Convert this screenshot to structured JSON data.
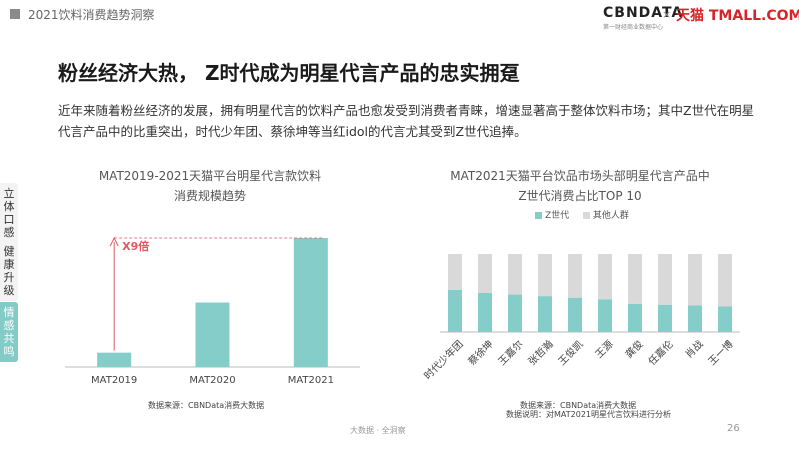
{
  "header": {
    "section_title": "2021饮料消费趋势洞察",
    "brand_left": "CBNDATA",
    "brand_left_sub": "第一财经商业数据中心",
    "brand_sep": "×",
    "brand_right": "天猫 TMALL.COM"
  },
  "headline": "粉丝经济大热， Z时代成为明星代言产品的忠实拥趸",
  "description": "近年来随着粉丝经济的发展，拥有明星代言的饮料产品也愈发受到消费者青睐，增速显著高于整体饮料市场；其中Z世代在明星代言产品中的比重突出，时代少年团、蔡徐坤等当红idol的代言尤其受到Z世代追捧。",
  "side_tabs": [
    {
      "label": "立体口感"
    },
    {
      "label": "健康升级"
    },
    {
      "label": "情感共鸣"
    }
  ],
  "colors": {
    "teal": "#84cdc8",
    "gray": "#d9d9d9",
    "accent_red": "#e0585f",
    "side_active": "#83cbc6"
  },
  "chart_data": [
    {
      "type": "bar",
      "title": "MAT2019-2021天猫平台明星代言款饮料消费规模趋势",
      "title_line1": "MAT2019-2021天猫平台明星代言款饮料",
      "title_line2": "消费规模趋势",
      "categories": [
        "MAT2019",
        "MAT2020",
        "MAT2021"
      ],
      "values": [
        1,
        4.5,
        9
      ],
      "annotation": "X9倍",
      "source": "数据来源：CBNData消费大数据"
    },
    {
      "type": "bar",
      "stacked": true,
      "title": "MAT2021天猫平台饮品市场头部明星代言产品中Z世代消费占比TOP 10",
      "title_line1": "MAT2021天猫平台饮品市场头部明星代言产品中",
      "title_line2": "Z世代消费占比TOP 10",
      "categories": [
        "时代少年团",
        "蔡徐坤",
        "王嘉尔",
        "张哲瀚",
        "王俊凯",
        "王源",
        "龚俊",
        "任嘉伦",
        "肖战",
        "王一博"
      ],
      "series": [
        {
          "name": "Z世代",
          "values": [
            0.54,
            0.5,
            0.48,
            0.46,
            0.44,
            0.42,
            0.36,
            0.35,
            0.34,
            0.33
          ]
        },
        {
          "name": "其他人群",
          "values": [
            0.46,
            0.5,
            0.52,
            0.54,
            0.56,
            0.58,
            0.64,
            0.65,
            0.66,
            0.67
          ]
        }
      ],
      "ylim": [
        0,
        1
      ],
      "source": "数据来源：CBNData消费大数据",
      "note": "数据说明：对MAT2021明星代言饮料进行分析"
    }
  ],
  "footer": {
    "text": "大数据 · 全洞察",
    "page": "26"
  }
}
